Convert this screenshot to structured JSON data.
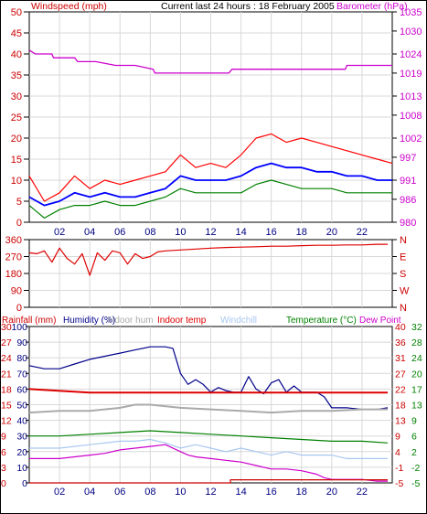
{
  "header": {
    "left_label": "Windspeed (mph)",
    "center_label": "Current last 24 hours : 18 February 2005",
    "right_label": "Barometer (hPa)"
  },
  "colors": {
    "wind_gust": "#ff0000",
    "wind_avg": "#0000ff",
    "wind_min": "#008000",
    "barometer": "#cc00cc",
    "direction": "#dd0000",
    "rainfall": "#cc0000",
    "humidity": "#00008b",
    "indoor_hum": "#aaaaaa",
    "indoor_temp": "#dd0000",
    "windchill": "#a8c8f0",
    "temperature": "#008000",
    "dew_point": "#cc00cc",
    "grid": "#d8d8d8"
  },
  "chart_data": [
    {
      "type": "line",
      "title": "Current last 24 hours : 18 February 2005",
      "ylabel": "Windspeed (mph)",
      "ylabel_right": "Barometer (hPa)",
      "ylim": [
        0,
        50
      ],
      "ylim_right": [
        980,
        1035
      ],
      "yticks": [
        0,
        5,
        10,
        15,
        20,
        25,
        30,
        35,
        40,
        45,
        50
      ],
      "yticks_right": [
        980,
        986,
        991,
        997,
        1002,
        1008,
        1013,
        1019,
        1024,
        1030,
        1035
      ],
      "xlim": [
        0,
        24
      ],
      "xticks": [
        "02",
        "04",
        "06",
        "08",
        "10",
        "12",
        "14",
        "16",
        "18",
        "20",
        "22"
      ],
      "xtick_values": [
        2,
        4,
        6,
        8,
        10,
        12,
        14,
        16,
        18,
        20,
        22
      ],
      "series": [
        {
          "name": "Barometer",
          "axis": "right",
          "style": "step",
          "x": [
            0,
            0.4,
            1.5,
            1.6,
            3.0,
            3.2,
            4.4,
            5.7,
            6.3,
            7.0,
            8.2,
            8.3,
            13.2,
            13.4,
            20.9,
            21.0,
            23.1,
            23.2,
            24
          ],
          "values": [
            1025,
            1024,
            1024,
            1023,
            1023,
            1022,
            1022,
            1021,
            1021,
            1021,
            1020,
            1019,
            1019,
            1020,
            1020,
            1021,
            1021,
            1021,
            1021
          ]
        },
        {
          "name": "Gust",
          "axis": "left",
          "x": [
            0,
            1,
            2,
            3,
            4,
            5,
            6,
            7,
            8,
            9,
            10,
            11,
            12,
            13,
            14,
            15,
            16,
            17,
            18,
            19,
            20,
            21,
            22,
            23,
            24
          ],
          "values": [
            11,
            5,
            7,
            11,
            8,
            10,
            9,
            10,
            11,
            12,
            16,
            13,
            14,
            13,
            16,
            20,
            21,
            19,
            20,
            19,
            18,
            17,
            16,
            15,
            14
          ]
        },
        {
          "name": "Average",
          "axis": "left",
          "x": [
            0,
            1,
            2,
            3,
            4,
            5,
            6,
            7,
            8,
            9,
            10,
            11,
            12,
            13,
            14,
            15,
            16,
            17,
            18,
            19,
            20,
            21,
            22,
            23,
            24
          ],
          "values": [
            6,
            4,
            5,
            7,
            6,
            7,
            6,
            6,
            7,
            8,
            11,
            10,
            10,
            10,
            11,
            13,
            14,
            13,
            13,
            12,
            12,
            11,
            11,
            10,
            10
          ]
        },
        {
          "name": "Minimum",
          "axis": "left",
          "x": [
            0,
            1,
            2,
            3,
            4,
            5,
            6,
            7,
            8,
            9,
            10,
            11,
            12,
            13,
            14,
            15,
            16,
            17,
            18,
            19,
            20,
            21,
            22,
            23,
            24
          ],
          "values": [
            4,
            1,
            3,
            4,
            4,
            5,
            4,
            4,
            5,
            6,
            8,
            7,
            7,
            7,
            7,
            9,
            10,
            9,
            8,
            8,
            8,
            7,
            7,
            7,
            7
          ]
        }
      ]
    },
    {
      "type": "line",
      "ylabel": "",
      "ylim": [
        0,
        360
      ],
      "yticks": [
        0,
        90,
        180,
        270,
        360
      ],
      "yticks_right": [
        "N",
        "W",
        "S",
        "E",
        "N"
      ],
      "xlim": [
        0,
        24
      ],
      "series": [
        {
          "name": "Wind direction",
          "axis": "left",
          "x": [
            0,
            0.5,
            1,
            1.5,
            2,
            2.5,
            3,
            3.5,
            4,
            4.5,
            5,
            5.5,
            6,
            6.5,
            7,
            7.5,
            8,
            8.5,
            9,
            10,
            11,
            12,
            13,
            14,
            15,
            16,
            17,
            18,
            19,
            20,
            21,
            22,
            23,
            23.7
          ],
          "values": [
            290,
            285,
            300,
            240,
            315,
            260,
            230,
            285,
            170,
            290,
            250,
            300,
            290,
            230,
            285,
            260,
            270,
            295,
            300,
            305,
            310,
            315,
            318,
            320,
            322,
            325,
            325,
            328,
            330,
            330,
            332,
            332,
            335,
            335
          ]
        }
      ]
    },
    {
      "type": "line",
      "ylabel": "Rainfall (mm)",
      "ylabel_right": "Temperature (°C)",
      "legend": [
        "Rainfall (mm)",
        "Humidity (%)",
        "Indoor hum",
        "Indoor temp",
        "Windchill",
        "Temperature (°C)",
        "Dew Point"
      ],
      "ylim": [
        0,
        100
      ],
      "ylim_right": [
        -5,
        40
      ],
      "yticks_outer": [
        0,
        3,
        6,
        9,
        12,
        15,
        18,
        21,
        24,
        27,
        30
      ],
      "yticks_inner": [
        0,
        10,
        20,
        30,
        40,
        50,
        60,
        70,
        80,
        90,
        100
      ],
      "yticks_right_inner": [
        -5,
        -1,
        4,
        9,
        13,
        18,
        22,
        27,
        31,
        36,
        40
      ],
      "yticks_right_outer": [
        -5,
        -2,
        2,
        6,
        9,
        13,
        17,
        20,
        24,
        28,
        32
      ],
      "xlim": [
        0,
        24
      ],
      "xticks": [
        "02",
        "04",
        "06",
        "08",
        "10",
        "12",
        "14",
        "16",
        "18",
        "20",
        "22"
      ],
      "xtick_values": [
        2,
        4,
        6,
        8,
        10,
        12,
        14,
        16,
        18,
        20,
        22
      ],
      "series": [
        {
          "name": "Humidity (%)",
          "axis": "pct",
          "x": [
            0,
            1,
            2,
            3,
            4,
            5,
            6,
            7,
            8,
            9,
            9.5,
            10,
            10.5,
            11,
            11.5,
            12,
            12.5,
            13,
            13.5,
            14,
            14.5,
            15,
            15.5,
            16,
            16.5,
            17,
            17.5,
            18,
            19,
            19.5,
            20,
            21,
            22,
            23,
            23.7
          ],
          "values": [
            75,
            73,
            73,
            76,
            79,
            81,
            83,
            85,
            87,
            87,
            86,
            70,
            63,
            66,
            63,
            58,
            61,
            59,
            58,
            58,
            68,
            60,
            57,
            64,
            66,
            58,
            62,
            58,
            58,
            55,
            48,
            48,
            47,
            47,
            48
          ]
        },
        {
          "name": "Indoor hum",
          "axis": "pct",
          "x": [
            0,
            2,
            4,
            6,
            7,
            8,
            10,
            12,
            14,
            16,
            18,
            20,
            22,
            23.7
          ],
          "values": [
            45,
            46,
            46,
            48,
            50,
            50,
            48,
            47,
            46,
            45,
            46,
            46,
            47,
            47
          ]
        },
        {
          "name": "Indoor temp",
          "axis": "temp",
          "x": [
            0,
            4,
            8,
            12,
            16,
            20,
            23.7
          ],
          "values": [
            22,
            21,
            21,
            21,
            21,
            21,
            21
          ]
        },
        {
          "name": "Temperature (°C)",
          "axis": "temp",
          "x": [
            0,
            2,
            4,
            6,
            8,
            10,
            12,
            14,
            16,
            18,
            20,
            22,
            23.7
          ],
          "values": [
            8.5,
            8.5,
            9,
            9.5,
            10,
            9.5,
            9,
            8.5,
            8,
            7.5,
            7,
            7,
            6.5
          ]
        },
        {
          "name": "Windchill",
          "axis": "temp",
          "x": [
            0,
            2,
            4,
            6,
            7,
            8,
            9,
            10,
            11,
            12,
            13,
            14,
            15,
            16,
            17,
            18,
            19,
            20,
            21,
            22,
            23,
            23.7
          ],
          "values": [
            5,
            5,
            6,
            7,
            7,
            7.5,
            6.5,
            5,
            6,
            5,
            4,
            5,
            4,
            3,
            4,
            3,
            3,
            3,
            2,
            2,
            2,
            2
          ]
        },
        {
          "name": "Dew Point",
          "axis": "temp",
          "x": [
            0,
            2,
            4,
            5,
            6,
            7,
            8,
            9,
            10,
            10.5,
            11,
            12,
            13,
            14,
            15,
            16,
            17,
            18,
            19,
            19.5,
            20,
            21,
            22,
            23,
            23.7
          ],
          "values": [
            2,
            2,
            3,
            3.5,
            4.5,
            5,
            5.5,
            6,
            4,
            3,
            2.5,
            2,
            1.5,
            1,
            0,
            -1,
            -1,
            -1.5,
            -2.5,
            -3.5,
            -4,
            -4,
            -4,
            -4.5,
            -4.5
          ]
        },
        {
          "name": "Rainfall (mm)",
          "axis": "rain",
          "x": [
            0,
            13.3,
            13.3,
            23.7
          ],
          "values": [
            0,
            0,
            0.6,
            0.6
          ]
        }
      ]
    }
  ]
}
